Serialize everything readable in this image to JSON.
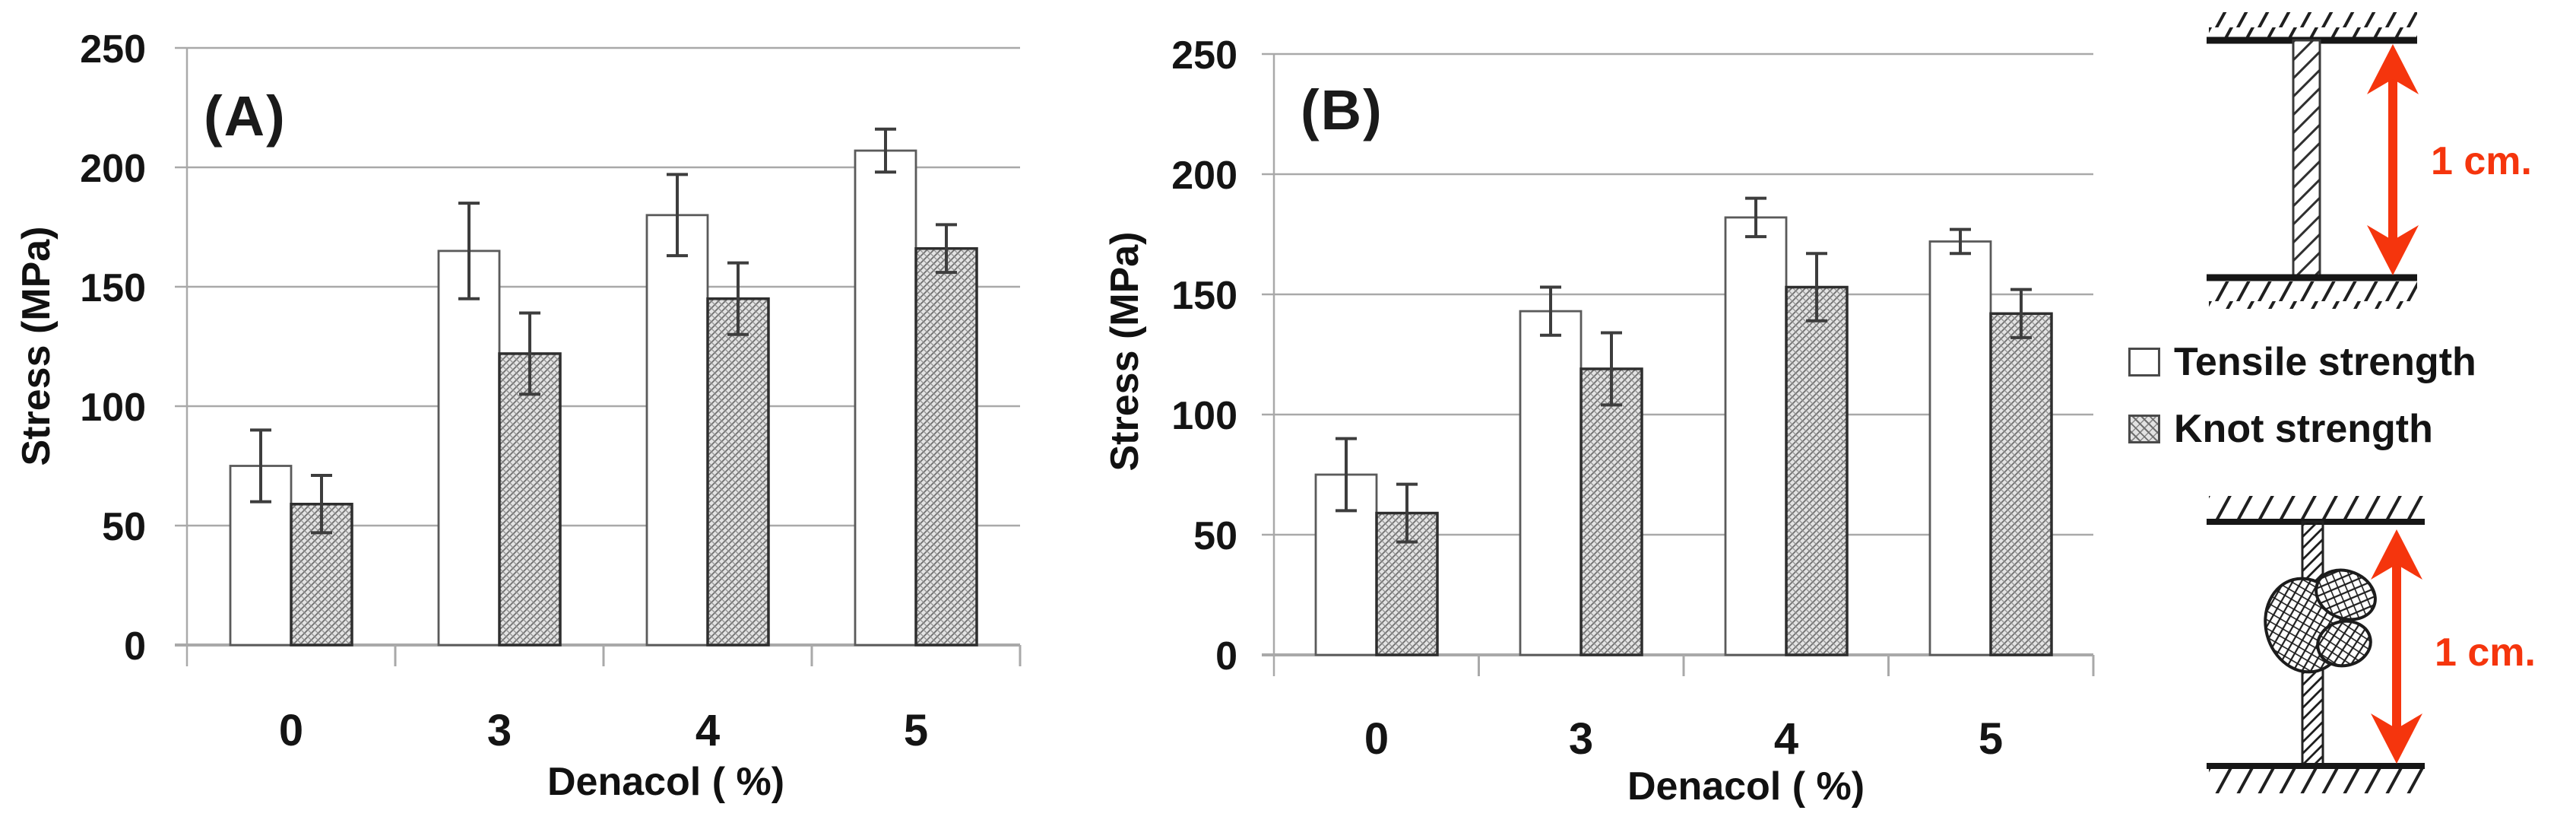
{
  "figure": {
    "panel_a_label": "(A)",
    "panel_b_label": "(B)",
    "colors": {
      "accent_red": "#f5350d",
      "grid": "#a9a9a9",
      "bar_border_dark": "#2e2e2e",
      "bar_border_light": "#5a5a5a",
      "error_bar": "#3d3d3d",
      "text": "#141414"
    },
    "legend": {
      "items": [
        {
          "label": "Tensile strength",
          "swatch": "white"
        },
        {
          "label": "Knot strength",
          "swatch": "crosshatch"
        }
      ]
    },
    "diagrams": {
      "straight_specimen": {
        "label": "1 cm.",
        "description": "straight fiber between two grips"
      },
      "knotted_specimen": {
        "label": "1 cm.",
        "description": "knotted fiber between two grips"
      }
    }
  },
  "chart_data": [
    {
      "type": "bar",
      "panel_label": "(A)",
      "title": "",
      "xlabel": "Denacol ( %)",
      "ylabel": "Stress (MPa)",
      "ylim": [
        0,
        250
      ],
      "yticks": [
        0,
        50,
        100,
        150,
        200,
        250
      ],
      "categories": [
        "0",
        "3",
        "4",
        "5"
      ],
      "grid": true,
      "legend_position": "right-outside",
      "series": [
        {
          "name": "Tensile strength",
          "style": "white",
          "values": [
            75,
            165,
            180,
            207
          ],
          "errors": [
            15,
            20,
            17,
            9
          ]
        },
        {
          "name": "Knot strength",
          "style": "crosshatch",
          "values": [
            59,
            122,
            145,
            166
          ],
          "errors": [
            12,
            17,
            15,
            10
          ]
        }
      ]
    },
    {
      "type": "bar",
      "panel_label": "(B)",
      "title": "",
      "xlabel": "Denacol ( %)",
      "ylabel": "Stress (MPa)",
      "ylim": [
        0,
        250
      ],
      "yticks": [
        0,
        50,
        100,
        150,
        200,
        250
      ],
      "categories": [
        "0",
        "3",
        "4",
        "5"
      ],
      "grid": true,
      "legend_position": "right-outside",
      "series": [
        {
          "name": "Tensile strength",
          "style": "white",
          "values": [
            75,
            143,
            182,
            172
          ],
          "errors": [
            15,
            10,
            8,
            5
          ]
        },
        {
          "name": "Knot strength",
          "style": "crosshatch",
          "values": [
            59,
            119,
            153,
            142
          ],
          "errors": [
            12,
            15,
            14,
            10
          ]
        }
      ]
    }
  ]
}
